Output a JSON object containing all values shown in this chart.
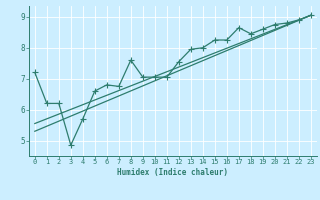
{
  "xlabel": "Humidex (Indice chaleur)",
  "bg_color": "#cceeff",
  "grid_color": "#ffffff",
  "line_color": "#2e7d6e",
  "xlim": [
    -0.5,
    23.5
  ],
  "ylim": [
    4.5,
    9.35
  ],
  "xticks": [
    0,
    1,
    2,
    3,
    4,
    5,
    6,
    7,
    8,
    9,
    10,
    11,
    12,
    13,
    14,
    15,
    16,
    17,
    18,
    19,
    20,
    21,
    22,
    23
  ],
  "yticks": [
    5,
    6,
    7,
    8,
    9
  ],
  "scatter_x": [
    0,
    1,
    2,
    3,
    4,
    5,
    6,
    7,
    8,
    9,
    10,
    11,
    12,
    13,
    14,
    15,
    16,
    17,
    18,
    19,
    20,
    21,
    22,
    23
  ],
  "scatter_y": [
    7.2,
    6.2,
    6.2,
    4.85,
    5.7,
    6.6,
    6.8,
    6.75,
    7.6,
    7.05,
    7.05,
    7.05,
    7.55,
    7.95,
    8.0,
    8.25,
    8.25,
    8.65,
    8.45,
    8.6,
    8.75,
    8.8,
    8.9,
    9.05
  ],
  "line1_x": [
    0,
    23
  ],
  "line1_y": [
    5.3,
    9.05
  ],
  "line2_x": [
    0,
    23
  ],
  "line2_y": [
    5.55,
    9.05
  ],
  "xlabel_fontsize": 5.5,
  "tick_fontsize": 5.0,
  "ytick_fontsize": 5.5,
  "line_width": 0.9,
  "marker_size": 4.0
}
